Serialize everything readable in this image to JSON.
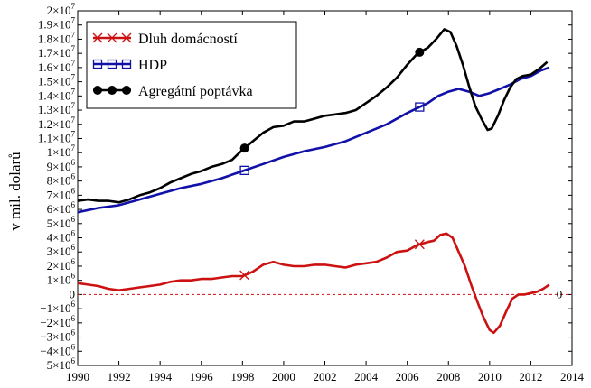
{
  "chart_data": {
    "type": "line",
    "ylabel": "v mil. dolarů",
    "xlim": [
      1990,
      2014
    ],
    "ylim": [
      -5000000,
      20000000
    ],
    "x_ticks": [
      "1990",
      "1992",
      "1994",
      "1996",
      "1998",
      "2000",
      "2002",
      "2004",
      "2006",
      "2008",
      "2010",
      "2012",
      "2014"
    ],
    "y_ticks": [
      {
        "value": 20000000,
        "mant": "2×10",
        "exp": "7"
      },
      {
        "value": 19000000,
        "mant": "1.9×10",
        "exp": "7"
      },
      {
        "value": 18000000,
        "mant": "1.8×10",
        "exp": "7"
      },
      {
        "value": 17000000,
        "mant": "1.7×10",
        "exp": "7"
      },
      {
        "value": 16000000,
        "mant": "1.6×10",
        "exp": "7"
      },
      {
        "value": 15000000,
        "mant": "1.5×10",
        "exp": "7"
      },
      {
        "value": 14000000,
        "mant": "1.4×10",
        "exp": "7"
      },
      {
        "value": 13000000,
        "mant": "1.3×10",
        "exp": "7"
      },
      {
        "value": 12000000,
        "mant": "1.2×10",
        "exp": "7"
      },
      {
        "value": 11000000,
        "mant": "1.1×10",
        "exp": "7"
      },
      {
        "value": 10000000,
        "mant": "1×10",
        "exp": "7"
      },
      {
        "value": 9000000,
        "mant": "9×10",
        "exp": "6"
      },
      {
        "value": 8000000,
        "mant": "8×10",
        "exp": "6"
      },
      {
        "value": 7000000,
        "mant": "7×10",
        "exp": "6"
      },
      {
        "value": 6000000,
        "mant": "6×10",
        "exp": "6"
      },
      {
        "value": 5000000,
        "mant": "5×10",
        "exp": "6"
      },
      {
        "value": 4000000,
        "mant": "4×10",
        "exp": "6"
      },
      {
        "value": 3000000,
        "mant": "3×10",
        "exp": "6"
      },
      {
        "value": 2000000,
        "mant": "2×10",
        "exp": "6"
      },
      {
        "value": 1000000,
        "mant": "1×10",
        "exp": "6"
      },
      {
        "value": 0,
        "mant": "0",
        "exp": ""
      },
      {
        "value": -1000000,
        "mant": "−1×10",
        "exp": "6"
      },
      {
        "value": -2000000,
        "mant": "−2×10",
        "exp": "6"
      },
      {
        "value": -3000000,
        "mant": "−3×10",
        "exp": "6"
      },
      {
        "value": -4000000,
        "mant": "−4×10",
        "exp": "6"
      },
      {
        "value": -5000000,
        "mant": "−5×10",
        "exp": "6"
      }
    ],
    "zero_line_label": "0",
    "legend_position": "top-left",
    "series": [
      {
        "name": "Dluh domácností",
        "color": "#cc1111",
        "marker": "x",
        "marker_x": [
          1998.1,
          2006.6
        ],
        "x": [
          1990,
          1990.5,
          1991,
          1991.5,
          1992,
          1992.5,
          1993,
          1993.5,
          1994,
          1994.5,
          1995,
          1995.5,
          1996,
          1996.5,
          1997,
          1997.5,
          1998,
          1998.5,
          1999,
          1999.5,
          2000,
          2000.5,
          2001,
          2001.5,
          2002,
          2002.5,
          2003,
          2003.5,
          2004,
          2004.5,
          2005,
          2005.5,
          2006,
          2006.5,
          2007,
          2007.3,
          2007.6,
          2007.9,
          2008.2,
          2008.5,
          2008.8,
          2009.1,
          2009.4,
          2009.7,
          2010,
          2010.2,
          2010.5,
          2010.8,
          2011.1,
          2011.4,
          2011.7,
          2012,
          2012.3,
          2012.6,
          2012.9
        ],
        "values": [
          800000,
          700000,
          600000,
          400000,
          300000,
          400000,
          500000,
          600000,
          700000,
          900000,
          1000000,
          1000000,
          1100000,
          1100000,
          1200000,
          1300000,
          1300000,
          1600000,
          2100000,
          2300000,
          2100000,
          2000000,
          2000000,
          2100000,
          2100000,
          2000000,
          1900000,
          2100000,
          2200000,
          2300000,
          2600000,
          3000000,
          3100000,
          3500000,
          3700000,
          3800000,
          4200000,
          4300000,
          4000000,
          3000000,
          2000000,
          700000,
          -500000,
          -1600000,
          -2500000,
          -2700000,
          -2200000,
          -1200000,
          -300000,
          0,
          0,
          100000,
          200000,
          400000,
          700000
        ]
      },
      {
        "name": "HDP",
        "color": "#1111aa",
        "marker": "square",
        "marker_x": [
          1998.1,
          2006.6
        ],
        "x": [
          1990,
          1991,
          1992,
          1993,
          1994,
          1995,
          1996,
          1997,
          1998,
          1999,
          2000,
          2001,
          2002,
          2003,
          2004,
          2005,
          2006,
          2007,
          2007.5,
          2008,
          2008.5,
          2009,
          2009.5,
          2010,
          2010.5,
          2011,
          2011.5,
          2012,
          2012.5,
          2012.9
        ],
        "values": [
          5800000,
          6100000,
          6300000,
          6700000,
          7100000,
          7500000,
          7800000,
          8200000,
          8700000,
          9200000,
          9700000,
          10100000,
          10400000,
          10800000,
          11400000,
          12000000,
          12800000,
          13500000,
          14000000,
          14300000,
          14500000,
          14300000,
          14000000,
          14200000,
          14500000,
          14800000,
          15200000,
          15400000,
          15800000,
          16000000
        ]
      },
      {
        "name": "Agregátní poptávka",
        "color": "#000000",
        "marker": "circle",
        "marker_x": [
          1998.1,
          2006.6
        ],
        "x": [
          1990,
          1990.5,
          1991,
          1991.5,
          1992,
          1992.5,
          1993,
          1993.5,
          1994,
          1994.5,
          1995,
          1995.5,
          1996,
          1996.5,
          1997,
          1997.5,
          1998,
          1998.5,
          1999,
          1999.5,
          2000,
          2000.5,
          2001,
          2001.5,
          2002,
          2002.5,
          2003,
          2003.5,
          2004,
          2004.5,
          2005,
          2005.5,
          2006,
          2006.5,
          2007,
          2007.4,
          2007.8,
          2008.1,
          2008.4,
          2008.7,
          2009,
          2009.3,
          2009.6,
          2009.9,
          2010.1,
          2010.4,
          2010.7,
          2011,
          2011.3,
          2011.6,
          2012,
          2012.4,
          2012.8
        ],
        "values": [
          6600000,
          6700000,
          6600000,
          6600000,
          6500000,
          6700000,
          7000000,
          7200000,
          7500000,
          7900000,
          8200000,
          8500000,
          8700000,
          9000000,
          9200000,
          9500000,
          10200000,
          10800000,
          11400000,
          11800000,
          11900000,
          12200000,
          12200000,
          12400000,
          12600000,
          12700000,
          12800000,
          13000000,
          13500000,
          14000000,
          14600000,
          15300000,
          16200000,
          17000000,
          17400000,
          18000000,
          18700000,
          18500000,
          17500000,
          16200000,
          14700000,
          13300000,
          12400000,
          11600000,
          11700000,
          12600000,
          13700000,
          14600000,
          15200000,
          15400000,
          15500000,
          15900000,
          16400000
        ]
      }
    ]
  }
}
